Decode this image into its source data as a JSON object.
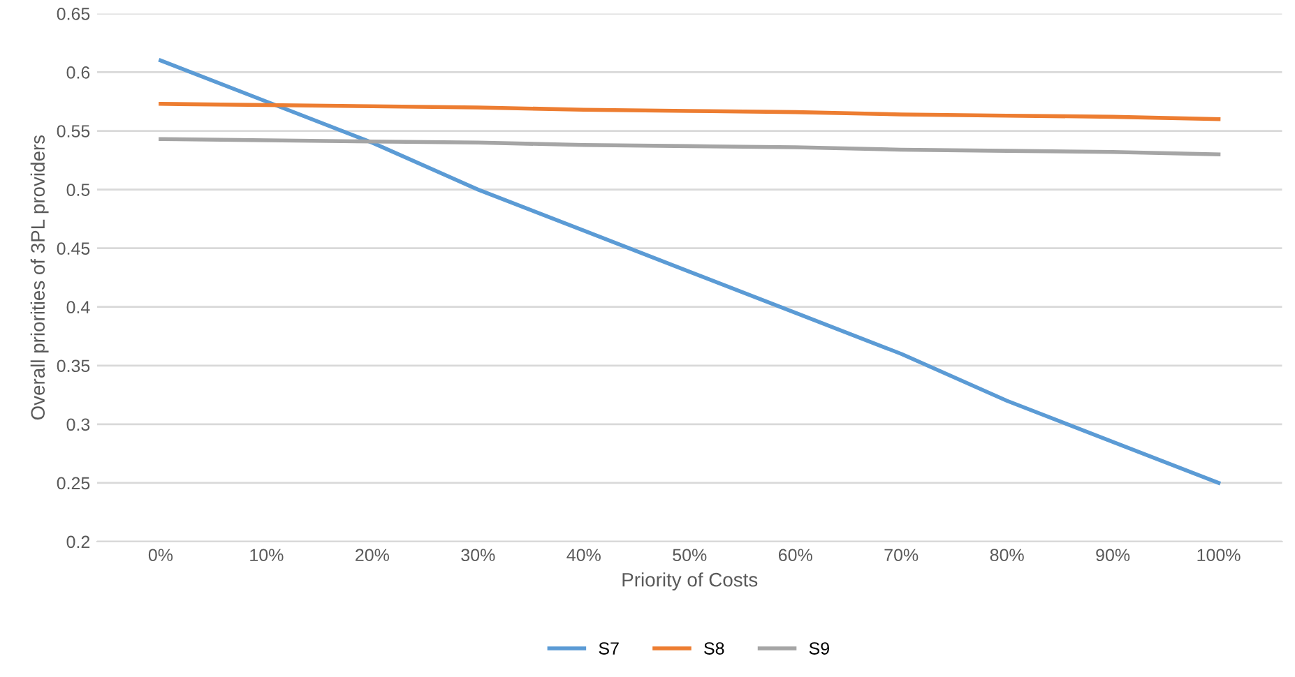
{
  "chart_data": {
    "type": "line",
    "xlabel": "Priority of Costs",
    "ylabel": "Overall priorities of 3PL providers",
    "categories": [
      "0%",
      "10%",
      "20%",
      "30%",
      "40%",
      "50%",
      "60%",
      "70%",
      "80%",
      "90%",
      "100%"
    ],
    "series": [
      {
        "name": "S7",
        "color": "#5b9bd5",
        "values": [
          0.61,
          0.575,
          0.54,
          0.5,
          0.465,
          0.43,
          0.395,
          0.36,
          0.32,
          0.285,
          0.25
        ]
      },
      {
        "name": "S8",
        "color": "#ed7d31",
        "values": [
          0.573,
          0.572,
          0.571,
          0.57,
          0.568,
          0.567,
          0.566,
          0.564,
          0.563,
          0.562,
          0.56
        ]
      },
      {
        "name": "S9",
        "color": "#a5a5a5",
        "values": [
          0.543,
          0.542,
          0.541,
          0.54,
          0.538,
          0.537,
          0.536,
          0.534,
          0.533,
          0.532,
          0.53
        ]
      }
    ],
    "ylim": [
      0.2,
      0.65
    ],
    "yticks": [
      0.2,
      0.25,
      0.3,
      0.35,
      0.4,
      0.45,
      0.5,
      0.55,
      0.6,
      0.65
    ],
    "grid": "y",
    "legend": "bottom",
    "marker": "none",
    "line_style": "solid"
  }
}
